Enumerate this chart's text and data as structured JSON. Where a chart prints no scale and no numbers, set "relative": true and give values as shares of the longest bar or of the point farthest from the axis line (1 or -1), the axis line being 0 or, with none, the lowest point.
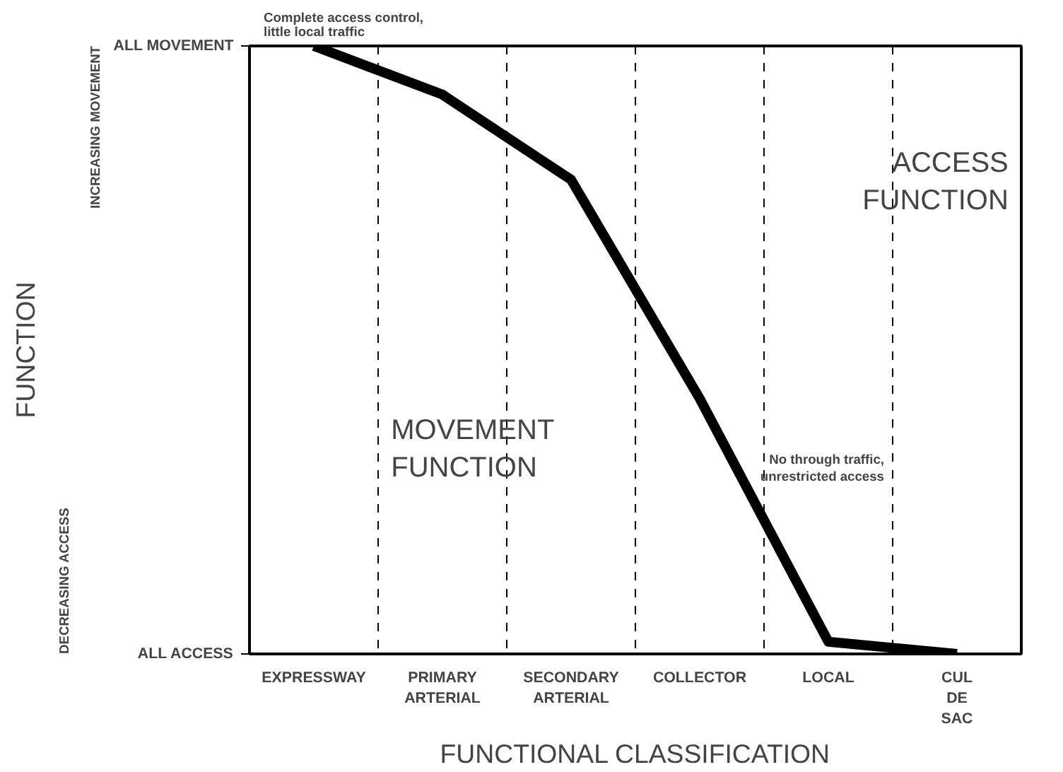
{
  "chart_data": {
    "type": "line",
    "relative": true,
    "xlabel": "FUNCTIONAL CLASSIFICATION",
    "categories": [
      "EXPRESSWAY",
      "PRIMARY\nARTERIAL",
      "SECONDARY\nARTERIAL",
      "COLLECTOR",
      "LOCAL",
      "CUL\nDE\nSAC"
    ],
    "series": [
      {
        "color": "#000000",
        "values": [
          1,
          0.92,
          0.78,
          0.42,
          0.02,
          0
        ]
      }
    ],
    "annotations": [
      "Complete access control,\nlittle local traffic",
      "MOVEMENT\nFUNCTION",
      "ACCESS\nFUNCTION",
      "ALL MOVEMENT",
      "ALL ACCESS",
      "INCREASING MOVEMENT",
      "DECREASING ACCESS",
      "FUNCTION",
      "No through traffic,\nunrestricted access"
    ],
    "grid": "x",
    "marker": "none",
    "line_style": "solid"
  }
}
